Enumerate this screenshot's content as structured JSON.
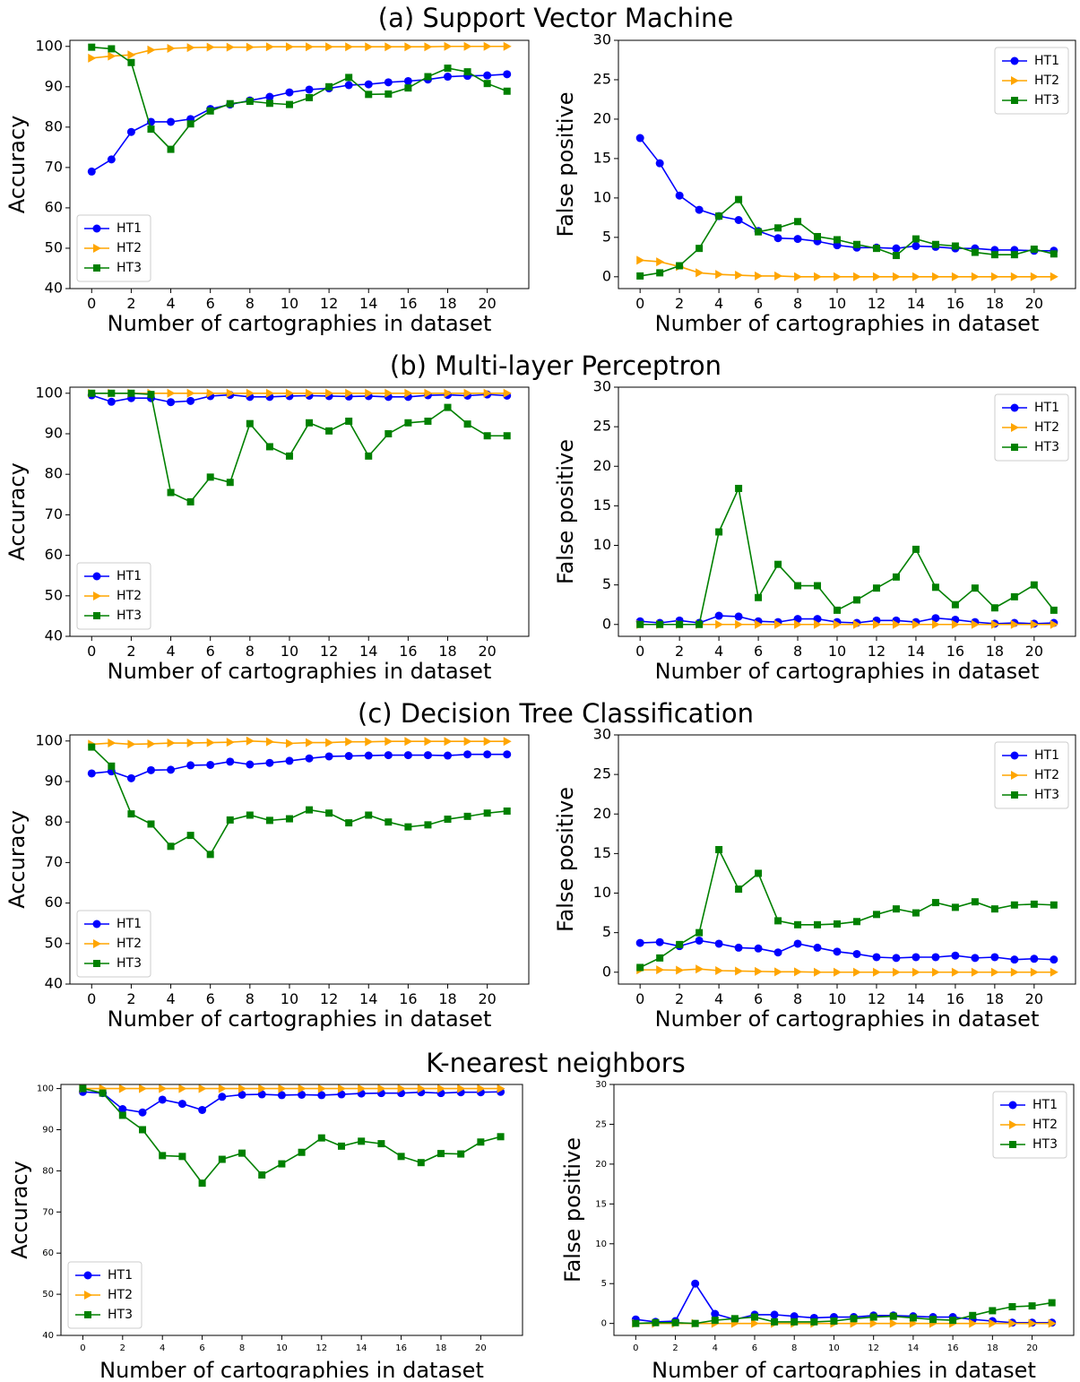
{
  "headings": [
    "(a) Support Vector Machine",
    "(b) Multi-layer Perceptron",
    "(c) Decision Tree Classification",
    "K-nearest neighbors"
  ],
  "chart_data": [
    {
      "type": "line",
      "xlabel": "Number of cartographies in dataset",
      "ylabel": "Accuracy",
      "legend": "lower left",
      "x": [
        0,
        1,
        2,
        3,
        4,
        5,
        6,
        7,
        8,
        9,
        10,
        11,
        12,
        13,
        14,
        15,
        16,
        17,
        18,
        19,
        20,
        21
      ],
      "xlim": [
        -1.1,
        22.1
      ],
      "xticks": [
        0,
        2,
        4,
        6,
        8,
        10,
        12,
        14,
        16,
        18,
        20
      ],
      "ylim": [
        40,
        101.5
      ],
      "yticks": [
        40,
        50,
        60,
        70,
        80,
        90,
        100
      ],
      "series": [
        {
          "name": "HT1",
          "color": "#0000ff",
          "marker": "circle",
          "values": [
            69,
            72,
            78.8,
            81.3,
            81.3,
            82,
            84.5,
            85.6,
            86.6,
            87.5,
            88.6,
            89.3,
            89.6,
            90.4,
            90.6,
            91.1,
            91.4,
            91.8,
            92.5,
            92.7,
            92.8,
            93.1
          ]
        },
        {
          "name": "HT2",
          "color": "#ffa500",
          "marker": "triangle",
          "values": [
            97.1,
            97.6,
            97.9,
            99.1,
            99.5,
            99.7,
            99.8,
            99.8,
            99.8,
            99.9,
            99.9,
            99.9,
            99.9,
            99.9,
            99.9,
            99.9,
            99.9,
            99.9,
            100,
            100,
            100,
            100
          ]
        },
        {
          "name": "HT3",
          "color": "#008000",
          "marker": "square",
          "values": [
            99.8,
            99.4,
            96,
            79.5,
            74.5,
            80.8,
            84,
            85.8,
            86.4,
            85.9,
            85.6,
            87.3,
            90,
            92.3,
            88.1,
            88.2,
            89.7,
            92.5,
            94.6,
            93.7,
            90.8,
            88.9
          ]
        }
      ]
    },
    {
      "type": "line",
      "xlabel": "Number of cartographies in dataset",
      "ylabel": "False positive",
      "legend": "upper right",
      "x": [
        0,
        1,
        2,
        3,
        4,
        5,
        6,
        7,
        8,
        9,
        10,
        11,
        12,
        13,
        14,
        15,
        16,
        17,
        18,
        19,
        20,
        21
      ],
      "xlim": [
        -1.1,
        22.1
      ],
      "xticks": [
        0,
        2,
        4,
        6,
        8,
        10,
        12,
        14,
        16,
        18,
        20
      ],
      "ylim": [
        -1.5,
        30
      ],
      "yticks": [
        0,
        5,
        10,
        15,
        20,
        25,
        30
      ],
      "series": [
        {
          "name": "HT1",
          "color": "#0000ff",
          "marker": "circle",
          "values": [
            17.6,
            14.4,
            10.3,
            8.5,
            7.7,
            7.2,
            5.8,
            4.9,
            4.8,
            4.5,
            4.0,
            3.7,
            3.7,
            3.6,
            3.9,
            3.8,
            3.6,
            3.6,
            3.4,
            3.4,
            3.3,
            3.3
          ]
        },
        {
          "name": "HT2",
          "color": "#ffa500",
          "marker": "triangle",
          "values": [
            2.1,
            1.9,
            1.3,
            0.5,
            0.3,
            0.2,
            0.1,
            0.1,
            0,
            0,
            0,
            0,
            0,
            0,
            0,
            0,
            0,
            0,
            0,
            0,
            0,
            0
          ]
        },
        {
          "name": "HT3",
          "color": "#008000",
          "marker": "square",
          "values": [
            0.1,
            0.5,
            1.4,
            3.6,
            7.7,
            9.8,
            5.7,
            6.2,
            7.0,
            5.1,
            4.7,
            4.1,
            3.6,
            2.7,
            4.8,
            4.1,
            3.9,
            3.1,
            2.8,
            2.8,
            3.5,
            2.9
          ]
        }
      ]
    },
    {
      "type": "line",
      "xlabel": "Number of cartographies in dataset",
      "ylabel": "Accuracy",
      "legend": "lower left",
      "x": [
        0,
        1,
        2,
        3,
        4,
        5,
        6,
        7,
        8,
        9,
        10,
        11,
        12,
        13,
        14,
        15,
        16,
        17,
        18,
        19,
        20,
        21
      ],
      "xlim": [
        -1.1,
        22.1
      ],
      "xticks": [
        0,
        2,
        4,
        6,
        8,
        10,
        12,
        14,
        16,
        18,
        20
      ],
      "ylim": [
        40,
        101.5
      ],
      "yticks": [
        40,
        50,
        60,
        70,
        80,
        90,
        100
      ],
      "series": [
        {
          "name": "HT1",
          "color": "#0000ff",
          "marker": "circle",
          "values": [
            99.5,
            97.9,
            98.8,
            98.8,
            97.8,
            98.1,
            99.3,
            99.6,
            99.1,
            99.1,
            99.3,
            99.4,
            99.3,
            99.2,
            99.3,
            99.1,
            99.1,
            99.5,
            99.6,
            99.4,
            99.7,
            99.4
          ]
        },
        {
          "name": "HT2",
          "color": "#ffa500",
          "marker": "triangle",
          "values": [
            100,
            100,
            100,
            100,
            100,
            100,
            100,
            100,
            100,
            100,
            100,
            100,
            100,
            100,
            100,
            100,
            100,
            100,
            100,
            100,
            100,
            100
          ]
        },
        {
          "name": "HT3",
          "color": "#008000",
          "marker": "square",
          "values": [
            100,
            100,
            100,
            99.7,
            75.5,
            73.2,
            79.3,
            78,
            92.5,
            86.8,
            84.5,
            92.7,
            90.7,
            93.1,
            84.5,
            90,
            92.7,
            93.1,
            96.5,
            92.4,
            89.5,
            89.5
          ]
        }
      ]
    },
    {
      "type": "line",
      "xlabel": "Number of cartographies in dataset",
      "ylabel": "False positive",
      "legend": "upper right",
      "x": [
        0,
        1,
        2,
        3,
        4,
        5,
        6,
        7,
        8,
        9,
        10,
        11,
        12,
        13,
        14,
        15,
        16,
        17,
        18,
        19,
        20,
        21
      ],
      "xlim": [
        -1.1,
        22.1
      ],
      "xticks": [
        0,
        2,
        4,
        6,
        8,
        10,
        12,
        14,
        16,
        18,
        20
      ],
      "ylim": [
        -1.5,
        30
      ],
      "yticks": [
        0,
        5,
        10,
        15,
        20,
        25,
        30
      ],
      "series": [
        {
          "name": "HT1",
          "color": "#0000ff",
          "marker": "circle",
          "values": [
            0.4,
            0.2,
            0.5,
            0.2,
            1.1,
            1.0,
            0.4,
            0.3,
            0.7,
            0.7,
            0.3,
            0.2,
            0.5,
            0.5,
            0.3,
            0.8,
            0.6,
            0.3,
            0.1,
            0.2,
            0.1,
            0.2
          ]
        },
        {
          "name": "HT2",
          "color": "#ffa500",
          "marker": "triangle",
          "values": [
            0,
            0,
            0,
            0,
            0,
            0,
            0,
            0,
            0,
            0,
            0,
            0,
            0,
            0,
            0,
            0,
            0,
            0,
            0,
            0,
            0,
            0
          ]
        },
        {
          "name": "HT3",
          "color": "#008000",
          "marker": "square",
          "values": [
            0,
            0,
            0,
            0,
            11.7,
            17.2,
            3.4,
            7.6,
            4.9,
            4.9,
            1.8,
            3.1,
            4.6,
            6.0,
            9.5,
            4.7,
            2.5,
            4.6,
            2.1,
            3.5,
            5.0,
            1.8
          ]
        }
      ]
    },
    {
      "type": "line",
      "xlabel": "Number of cartographies in dataset",
      "ylabel": "Accuracy",
      "legend": "lower left",
      "x": [
        0,
        1,
        2,
        3,
        4,
        5,
        6,
        7,
        8,
        9,
        10,
        11,
        12,
        13,
        14,
        15,
        16,
        17,
        18,
        19,
        20,
        21
      ],
      "xlim": [
        -1.1,
        22.1
      ],
      "xticks": [
        0,
        2,
        4,
        6,
        8,
        10,
        12,
        14,
        16,
        18,
        20
      ],
      "ylim": [
        40,
        101.5
      ],
      "yticks": [
        40,
        50,
        60,
        70,
        80,
        90,
        100
      ],
      "series": [
        {
          "name": "HT1",
          "color": "#0000ff",
          "marker": "circle",
          "values": [
            92,
            92.5,
            90.8,
            92.8,
            92.9,
            94,
            94.1,
            94.9,
            94.2,
            94.6,
            95.1,
            95.7,
            96.2,
            96.3,
            96.4,
            96.5,
            96.5,
            96.5,
            96.4,
            96.7,
            96.7,
            96.7
          ]
        },
        {
          "name": "HT2",
          "color": "#ffa500",
          "marker": "triangle",
          "values": [
            99.2,
            99.5,
            99.2,
            99.3,
            99.5,
            99.5,
            99.6,
            99.7,
            100,
            99.8,
            99.4,
            99.6,
            99.6,
            99.8,
            99.8,
            99.9,
            99.9,
            99.9,
            99.9,
            99.9,
            99.9,
            99.9
          ]
        },
        {
          "name": "HT3",
          "color": "#008000",
          "marker": "square",
          "values": [
            98.5,
            93.8,
            82,
            79.5,
            74,
            76.7,
            72,
            80.5,
            81.7,
            80.4,
            80.8,
            83,
            82.2,
            79.8,
            81.7,
            80,
            78.8,
            79.3,
            80.7,
            81.4,
            82.2,
            82.7
          ]
        }
      ]
    },
    {
      "type": "line",
      "xlabel": "Number of cartographies in dataset",
      "ylabel": "False positive",
      "legend": "upper right",
      "x": [
        0,
        1,
        2,
        3,
        4,
        5,
        6,
        7,
        8,
        9,
        10,
        11,
        12,
        13,
        14,
        15,
        16,
        17,
        18,
        19,
        20,
        21
      ],
      "xlim": [
        -1.1,
        22.1
      ],
      "xticks": [
        0,
        2,
        4,
        6,
        8,
        10,
        12,
        14,
        16,
        18,
        20
      ],
      "ylim": [
        -1.5,
        30
      ],
      "yticks": [
        0,
        5,
        10,
        15,
        20,
        25,
        30
      ],
      "series": [
        {
          "name": "HT1",
          "color": "#0000ff",
          "marker": "circle",
          "values": [
            3.7,
            3.8,
            3.3,
            4.0,
            3.6,
            3.1,
            3.0,
            2.5,
            3.6,
            3.1,
            2.6,
            2.3,
            1.9,
            1.8,
            1.9,
            1.9,
            2.1,
            1.8,
            1.9,
            1.6,
            1.7,
            1.6
          ]
        },
        {
          "name": "HT2",
          "color": "#ffa500",
          "marker": "triangle",
          "values": [
            0.3,
            0.3,
            0.25,
            0.4,
            0.2,
            0.15,
            0.1,
            0.05,
            0.05,
            0,
            0,
            0,
            0,
            0,
            0,
            0,
            0,
            0,
            0,
            0,
            0,
            0
          ]
        },
        {
          "name": "HT3",
          "color": "#008000",
          "marker": "square",
          "values": [
            0.6,
            1.8,
            3.5,
            5.0,
            15.5,
            10.5,
            12.5,
            6.5,
            6.0,
            6.0,
            6.1,
            6.4,
            7.3,
            8.0,
            7.5,
            8.8,
            8.2,
            8.9,
            8.0,
            8.5,
            8.6,
            8.5
          ]
        }
      ]
    },
    {
      "type": "line",
      "xlabel": "Number of cartographies in dataset",
      "ylabel": "Accuracy",
      "legend": "lower left",
      "x": [
        0,
        1,
        2,
        3,
        4,
        5,
        6,
        7,
        8,
        9,
        10,
        11,
        12,
        13,
        14,
        15,
        16,
        17,
        18,
        19,
        20,
        21
      ],
      "xlim": [
        -1.1,
        22.1
      ],
      "xticks": [
        0,
        2,
        4,
        6,
        8,
        10,
        12,
        14,
        16,
        18,
        20
      ],
      "ylim": [
        40,
        101
      ],
      "yticks": [
        40,
        50,
        60,
        70,
        80,
        90,
        100
      ],
      "series": [
        {
          "name": "HT1",
          "color": "#0000ff",
          "marker": "circle",
          "values": [
            99.2,
            98.9,
            95,
            94.2,
            97.3,
            96.3,
            94.8,
            98,
            98.5,
            98.6,
            98.4,
            98.5,
            98.4,
            98.6,
            98.8,
            98.9,
            98.9,
            99.1,
            98.9,
            99.1,
            99.1,
            99.2
          ]
        },
        {
          "name": "HT2",
          "color": "#ffa500",
          "marker": "triangle",
          "values": [
            100,
            100,
            100,
            100,
            100,
            100,
            100,
            100,
            100,
            100,
            100,
            100,
            100,
            100,
            100,
            100,
            100,
            100,
            100,
            100,
            100,
            100
          ]
        },
        {
          "name": "HT3",
          "color": "#008000",
          "marker": "square",
          "values": [
            100,
            98.9,
            93.5,
            90,
            83.7,
            83.5,
            77,
            82.8,
            84.3,
            79,
            81.7,
            84.5,
            88,
            86,
            87.2,
            86.6,
            83.5,
            82,
            84.2,
            84.1,
            87,
            88.3
          ]
        }
      ]
    },
    {
      "type": "line",
      "xlabel": "Number of cartographies in dataset",
      "ylabel": "False positive",
      "legend": "upper right",
      "x": [
        0,
        1,
        2,
        3,
        4,
        5,
        6,
        7,
        8,
        9,
        10,
        11,
        12,
        13,
        14,
        15,
        16,
        17,
        18,
        19,
        20,
        21
      ],
      "xlim": [
        -1.1,
        22.1
      ],
      "xticks": [
        0,
        2,
        4,
        6,
        8,
        10,
        12,
        14,
        16,
        18,
        20
      ],
      "ylim": [
        -1.5,
        30
      ],
      "yticks": [
        0,
        5,
        10,
        15,
        20,
        25,
        30
      ],
      "series": [
        {
          "name": "HT1",
          "color": "#0000ff",
          "marker": "circle",
          "values": [
            0.5,
            0.2,
            0.3,
            5.0,
            1.2,
            0.5,
            1.1,
            1.1,
            0.9,
            0.7,
            0.8,
            0.8,
            1.0,
            1.0,
            0.9,
            0.8,
            0.8,
            0.5,
            0.3,
            0.1,
            0.1,
            0.1
          ]
        },
        {
          "name": "HT2",
          "color": "#ffa500",
          "marker": "triangle",
          "values": [
            0,
            0,
            0,
            0,
            0,
            0,
            0,
            0,
            0,
            0,
            0,
            0,
            0,
            0,
            0,
            0,
            0,
            0,
            0,
            0,
            0,
            0
          ]
        },
        {
          "name": "HT3",
          "color": "#008000",
          "marker": "square",
          "values": [
            0,
            0.1,
            0.1,
            0,
            0.4,
            0.6,
            0.8,
            0.2,
            0.2,
            0.2,
            0.3,
            0.6,
            0.8,
            0.9,
            0.7,
            0.5,
            0.4,
            1.0,
            1.6,
            2.1,
            2.2,
            2.6
          ]
        }
      ]
    }
  ]
}
